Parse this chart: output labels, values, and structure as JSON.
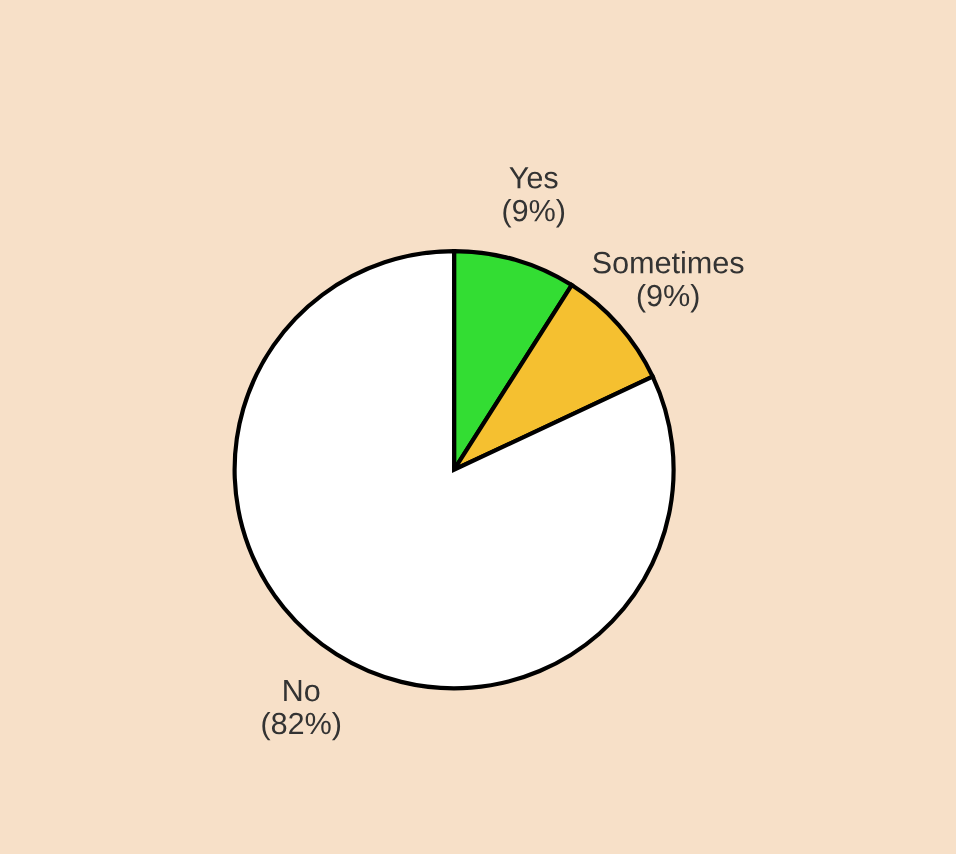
{
  "chart_data": {
    "type": "pie",
    "categories": [
      "Yes",
      "Sometimes",
      "No"
    ],
    "values": [
      9,
      9,
      82
    ],
    "value_labels": [
      "(9%)",
      "(9%)",
      "(82%)"
    ],
    "colors": [
      "#33dd33",
      "#f5c030",
      "#ffffff"
    ],
    "legend": false
  }
}
